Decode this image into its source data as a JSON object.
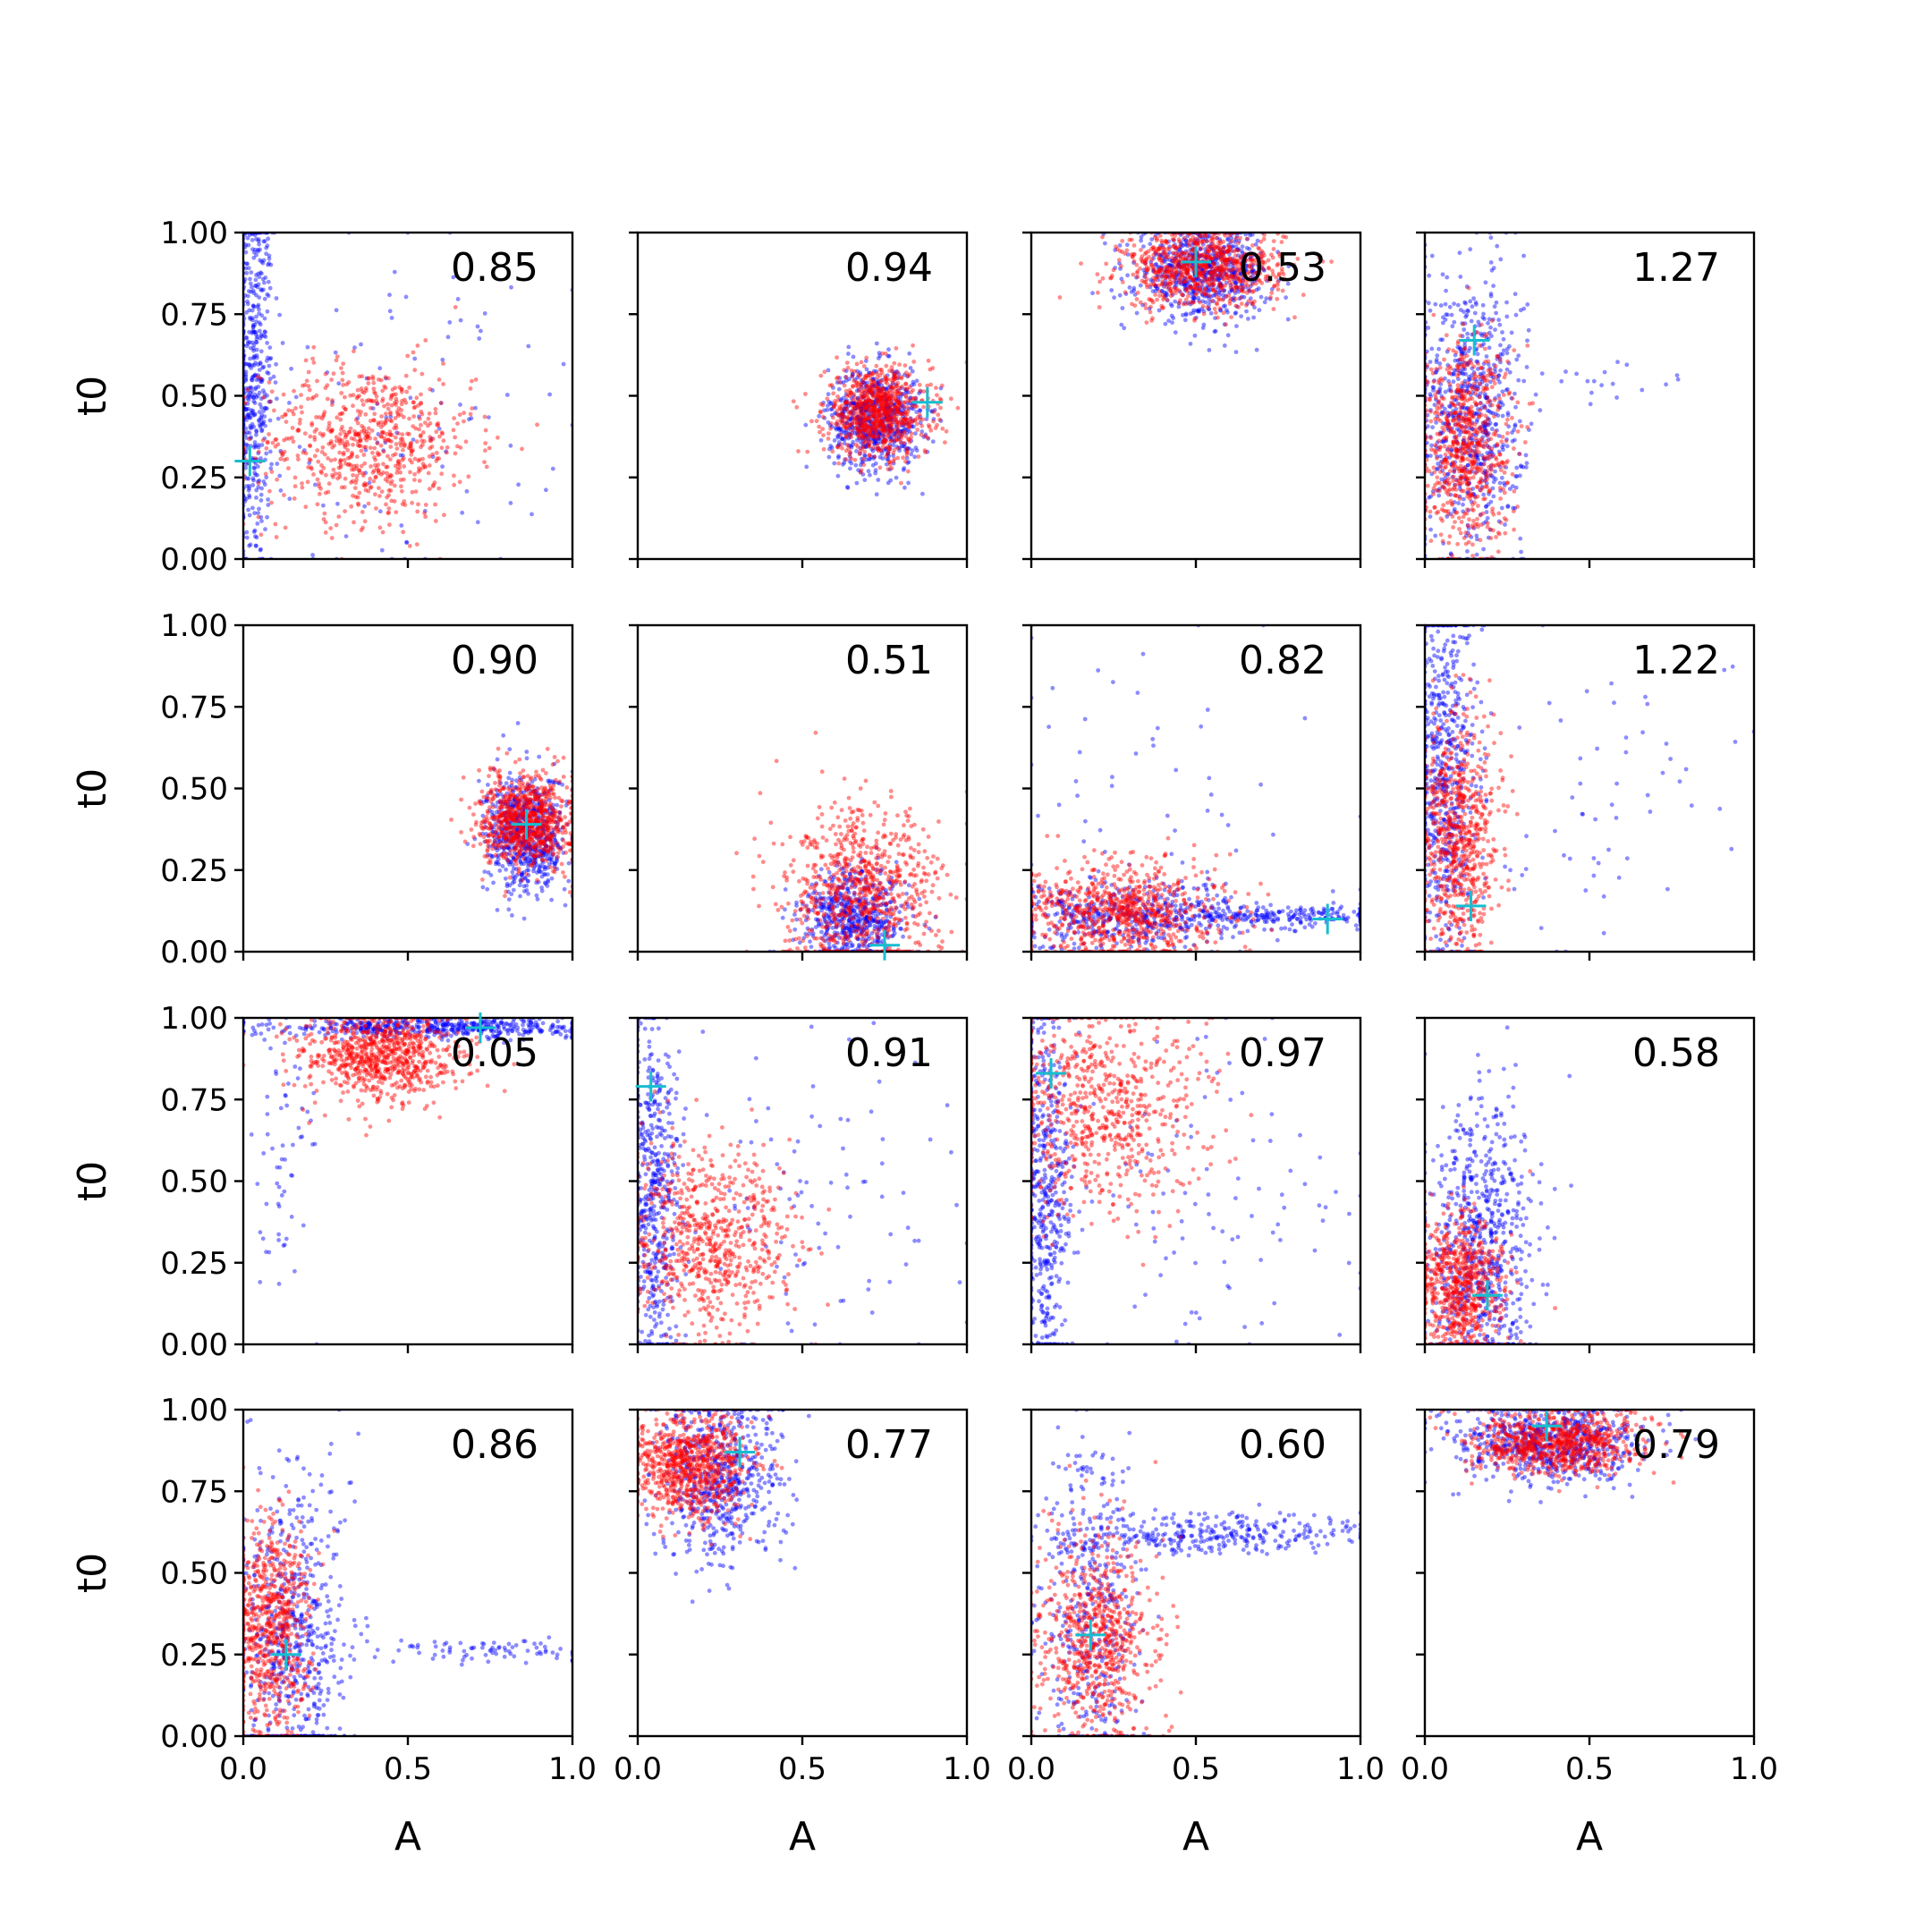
{
  "figure": {
    "xlabel": "A",
    "ylabel": "t0",
    "x_ticks": [
      "0.0",
      "0.5",
      "1.0"
    ],
    "y_ticks": [
      "0.00",
      "0.25",
      "0.50",
      "0.75",
      "1.00"
    ]
  },
  "colors": {
    "series_blue": "#0000ff",
    "series_red": "#ff0000",
    "marker": "#17becf",
    "axes": "#000000"
  },
  "chart_data": [
    {
      "type": "scatter",
      "panel": "row1-col1",
      "annotation": "0.85",
      "xlim": [
        0,
        1
      ],
      "ylim": [
        0,
        1
      ],
      "grid": false,
      "marker_point": {
        "x": 0.02,
        "y": 0.3
      },
      "series": [
        {
          "color": "blue",
          "clusters": [
            {
              "cx": 0.03,
              "cy": 0.55,
              "sx": 0.03,
              "sy": 0.3,
              "n": 500
            },
            {
              "cx": 0.45,
              "cy": 0.45,
              "sx": 0.25,
              "sy": 0.28,
              "n": 120
            }
          ]
        },
        {
          "color": "red",
          "clusters": [
            {
              "cx": 0.38,
              "cy": 0.36,
              "sx": 0.16,
              "sy": 0.12,
              "n": 700
            }
          ]
        }
      ]
    },
    {
      "type": "scatter",
      "panel": "row1-col2",
      "annotation": "0.94",
      "xlim": [
        0,
        1
      ],
      "ylim": [
        0,
        1
      ],
      "grid": false,
      "marker_point": {
        "x": 0.88,
        "y": 0.48
      },
      "series": [
        {
          "color": "blue",
          "clusters": [
            {
              "cx": 0.72,
              "cy": 0.43,
              "sx": 0.07,
              "sy": 0.08,
              "n": 700
            }
          ]
        },
        {
          "color": "red",
          "clusters": [
            {
              "cx": 0.73,
              "cy": 0.45,
              "sx": 0.08,
              "sy": 0.07,
              "n": 800
            }
          ]
        }
      ]
    },
    {
      "type": "scatter",
      "panel": "row1-col3",
      "annotation": "0.53",
      "xlim": [
        0,
        1
      ],
      "ylim": [
        0,
        1
      ],
      "grid": false,
      "marker_point": {
        "x": 0.5,
        "y": 0.91
      },
      "series": [
        {
          "color": "blue",
          "clusters": [
            {
              "cx": 0.52,
              "cy": 0.88,
              "sx": 0.1,
              "sy": 0.07,
              "n": 700
            }
          ]
        },
        {
          "color": "red",
          "clusters": [
            {
              "cx": 0.52,
              "cy": 0.89,
              "sx": 0.12,
              "sy": 0.06,
              "n": 800
            }
          ]
        }
      ]
    },
    {
      "type": "scatter",
      "panel": "row1-col4",
      "annotation": "1.27",
      "xlim": [
        0,
        1
      ],
      "ylim": [
        0,
        1
      ],
      "grid": false,
      "marker_point": {
        "x": 0.15,
        "y": 0.67
      },
      "series": [
        {
          "color": "blue",
          "clusters": [
            {
              "cx": 0.14,
              "cy": 0.45,
              "sx": 0.08,
              "sy": 0.22,
              "n": 700
            },
            {
              "cx": 0.5,
              "cy": 0.55,
              "sx": 0.18,
              "sy": 0.05,
              "n": 20
            }
          ]
        },
        {
          "color": "red",
          "clusters": [
            {
              "cx": 0.12,
              "cy": 0.36,
              "sx": 0.07,
              "sy": 0.16,
              "n": 700
            }
          ]
        }
      ]
    },
    {
      "type": "scatter",
      "panel": "row2-col1",
      "annotation": "0.90",
      "xlim": [
        0,
        1
      ],
      "ylim": [
        0,
        1
      ],
      "grid": false,
      "marker_point": {
        "x": 0.86,
        "y": 0.39
      },
      "series": [
        {
          "color": "blue",
          "clusters": [
            {
              "cx": 0.86,
              "cy": 0.36,
              "sx": 0.06,
              "sy": 0.09,
              "n": 700
            }
          ]
        },
        {
          "color": "red",
          "clusters": [
            {
              "cx": 0.86,
              "cy": 0.4,
              "sx": 0.07,
              "sy": 0.07,
              "n": 800
            }
          ]
        }
      ]
    },
    {
      "type": "scatter",
      "panel": "row2-col2",
      "annotation": "0.51",
      "xlim": [
        0,
        1
      ],
      "ylim": [
        0,
        1
      ],
      "grid": false,
      "marker_point": {
        "x": 0.75,
        "y": 0.02
      },
      "series": [
        {
          "color": "blue",
          "clusters": [
            {
              "cx": 0.66,
              "cy": 0.1,
              "sx": 0.08,
              "sy": 0.08,
              "n": 600
            }
          ]
        },
        {
          "color": "red",
          "clusters": [
            {
              "cx": 0.68,
              "cy": 0.17,
              "sx": 0.12,
              "sy": 0.13,
              "n": 800
            }
          ]
        }
      ]
    },
    {
      "type": "scatter",
      "panel": "row2-col3",
      "annotation": "0.82",
      "xlim": [
        0,
        1
      ],
      "ylim": [
        0,
        1
      ],
      "grid": false,
      "marker_point": {
        "x": 0.9,
        "y": 0.1
      },
      "series": [
        {
          "color": "blue",
          "clusters": [
            {
              "cx": 0.3,
              "cy": 0.11,
              "sx": 0.2,
              "sy": 0.05,
              "n": 500
            },
            {
              "cx": 0.8,
              "cy": 0.11,
              "sx": 0.18,
              "sy": 0.015,
              "n": 200
            },
            {
              "cx": 0.35,
              "cy": 0.5,
              "sx": 0.3,
              "sy": 0.3,
              "n": 60
            }
          ]
        },
        {
          "color": "red",
          "clusters": [
            {
              "cx": 0.28,
              "cy": 0.12,
              "sx": 0.15,
              "sy": 0.08,
              "n": 800
            }
          ]
        }
      ]
    },
    {
      "type": "scatter",
      "panel": "row2-col4",
      "annotation": "1.22",
      "xlim": [
        0,
        1
      ],
      "ylim": [
        0,
        1
      ],
      "grid": false,
      "marker_point": {
        "x": 0.14,
        "y": 0.14
      },
      "series": [
        {
          "color": "blue",
          "clusters": [
            {
              "cx": 0.06,
              "cy": 0.55,
              "sx": 0.05,
              "sy": 0.28,
              "n": 600
            },
            {
              "cx": 0.55,
              "cy": 0.45,
              "sx": 0.25,
              "sy": 0.2,
              "n": 60
            }
          ]
        },
        {
          "color": "red",
          "clusters": [
            {
              "cx": 0.1,
              "cy": 0.35,
              "sx": 0.06,
              "sy": 0.18,
              "n": 700
            }
          ]
        }
      ]
    },
    {
      "type": "scatter",
      "panel": "row3-col1",
      "annotation": "0.05",
      "xlim": [
        0,
        1
      ],
      "ylim": [
        0,
        1
      ],
      "grid": false,
      "marker_point": {
        "x": 0.72,
        "y": 0.97
      },
      "series": [
        {
          "color": "blue",
          "clusters": [
            {
              "cx": 0.6,
              "cy": 0.97,
              "sx": 0.25,
              "sy": 0.015,
              "n": 500
            },
            {
              "cx": 0.12,
              "cy": 0.55,
              "sx": 0.05,
              "sy": 0.25,
              "n": 60
            }
          ]
        },
        {
          "color": "red",
          "clusters": [
            {
              "cx": 0.42,
              "cy": 0.88,
              "sx": 0.12,
              "sy": 0.07,
              "n": 800
            }
          ]
        }
      ]
    },
    {
      "type": "scatter",
      "panel": "row3-col2",
      "annotation": "0.91",
      "xlim": [
        0,
        1
      ],
      "ylim": [
        0,
        1
      ],
      "grid": false,
      "marker_point": {
        "x": 0.04,
        "y": 0.79
      },
      "series": [
        {
          "color": "blue",
          "clusters": [
            {
              "cx": 0.05,
              "cy": 0.45,
              "sx": 0.04,
              "sy": 0.28,
              "n": 500
            },
            {
              "cx": 0.55,
              "cy": 0.4,
              "sx": 0.25,
              "sy": 0.25,
              "n": 100
            }
          ]
        },
        {
          "color": "red",
          "clusters": [
            {
              "cx": 0.22,
              "cy": 0.32,
              "sx": 0.13,
              "sy": 0.14,
              "n": 700
            }
          ]
        }
      ]
    },
    {
      "type": "scatter",
      "panel": "row3-col3",
      "annotation": "0.97",
      "xlim": [
        0,
        1
      ],
      "ylim": [
        0,
        1
      ],
      "grid": false,
      "marker_point": {
        "x": 0.06,
        "y": 0.83
      },
      "series": [
        {
          "color": "blue",
          "clusters": [
            {
              "cx": 0.04,
              "cy": 0.45,
              "sx": 0.04,
              "sy": 0.3,
              "n": 500
            },
            {
              "cx": 0.55,
              "cy": 0.5,
              "sx": 0.25,
              "sy": 0.28,
              "n": 100
            }
          ]
        },
        {
          "color": "red",
          "clusters": [
            {
              "cx": 0.22,
              "cy": 0.72,
              "sx": 0.16,
              "sy": 0.16,
              "n": 700
            }
          ]
        }
      ]
    },
    {
      "type": "scatter",
      "panel": "row3-col4",
      "annotation": "0.58",
      "xlim": [
        0,
        1
      ],
      "ylim": [
        0,
        1
      ],
      "grid": false,
      "marker_point": {
        "x": 0.19,
        "y": 0.15
      },
      "series": [
        {
          "color": "blue",
          "clusters": [
            {
              "cx": 0.17,
              "cy": 0.3,
              "sx": 0.08,
              "sy": 0.22,
              "n": 700
            }
          ]
        },
        {
          "color": "red",
          "clusters": [
            {
              "cx": 0.1,
              "cy": 0.18,
              "sx": 0.07,
              "sy": 0.11,
              "n": 700
            }
          ]
        }
      ]
    },
    {
      "type": "scatter",
      "panel": "row4-col1",
      "annotation": "0.86",
      "xlim": [
        0,
        1
      ],
      "ylim": [
        0,
        1
      ],
      "grid": false,
      "marker_point": {
        "x": 0.13,
        "y": 0.25
      },
      "series": [
        {
          "color": "blue",
          "clusters": [
            {
              "cx": 0.15,
              "cy": 0.3,
              "sx": 0.08,
              "sy": 0.25,
              "n": 600
            },
            {
              "cx": 0.75,
              "cy": 0.26,
              "sx": 0.2,
              "sy": 0.02,
              "n": 80
            }
          ]
        },
        {
          "color": "red",
          "clusters": [
            {
              "cx": 0.08,
              "cy": 0.32,
              "sx": 0.06,
              "sy": 0.17,
              "n": 700
            }
          ]
        }
      ]
    },
    {
      "type": "scatter",
      "panel": "row4-col2",
      "annotation": "0.77",
      "xlim": [
        0,
        1
      ],
      "ylim": [
        0,
        1
      ],
      "grid": false,
      "marker_point": {
        "x": 0.31,
        "y": 0.87
      },
      "series": [
        {
          "color": "blue",
          "clusters": [
            {
              "cx": 0.25,
              "cy": 0.78,
              "sx": 0.09,
              "sy": 0.14,
              "n": 600
            }
          ]
        },
        {
          "color": "red",
          "clusters": [
            {
              "cx": 0.16,
              "cy": 0.83,
              "sx": 0.09,
              "sy": 0.08,
              "n": 800
            }
          ]
        }
      ]
    },
    {
      "type": "scatter",
      "panel": "row4-col3",
      "annotation": "0.60",
      "xlim": [
        0,
        1
      ],
      "ylim": [
        0,
        1
      ],
      "grid": false,
      "marker_point": {
        "x": 0.18,
        "y": 0.31
      },
      "series": [
        {
          "color": "blue",
          "clusters": [
            {
              "cx": 0.18,
              "cy": 0.4,
              "sx": 0.07,
              "sy": 0.25,
              "n": 400
            },
            {
              "cx": 0.55,
              "cy": 0.62,
              "sx": 0.25,
              "sy": 0.03,
              "n": 300
            }
          ]
        },
        {
          "color": "red",
          "clusters": [
            {
              "cx": 0.2,
              "cy": 0.3,
              "sx": 0.09,
              "sy": 0.16,
              "n": 700
            }
          ]
        }
      ]
    },
    {
      "type": "scatter",
      "panel": "row4-col4",
      "annotation": "0.79",
      "xlim": [
        0,
        1
      ],
      "ylim": [
        0,
        1
      ],
      "grid": false,
      "marker_point": {
        "x": 0.37,
        "y": 0.95
      },
      "series": [
        {
          "color": "blue",
          "clusters": [
            {
              "cx": 0.38,
              "cy": 0.9,
              "sx": 0.14,
              "sy": 0.06,
              "n": 700
            }
          ]
        },
        {
          "color": "red",
          "clusters": [
            {
              "cx": 0.4,
              "cy": 0.9,
              "sx": 0.13,
              "sy": 0.05,
              "n": 800
            }
          ]
        }
      ]
    }
  ]
}
